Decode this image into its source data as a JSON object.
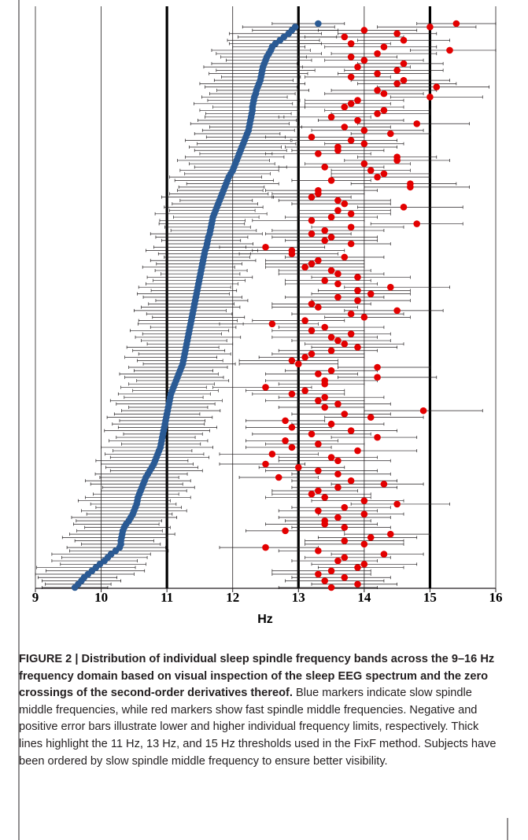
{
  "chart_data": {
    "type": "dot-errorbar",
    "xlabel": "Hz",
    "xlim": [
      9,
      16
    ],
    "xticks": [
      9,
      10,
      11,
      12,
      13,
      14,
      15,
      16
    ],
    "thresholds": [
      11,
      13,
      15
    ],
    "grid": true,
    "series": [
      {
        "color": "#2a5a94",
        "values": [
          13.3,
          12.95,
          12.9,
          12.85,
          12.78,
          12.72,
          12.65,
          12.6,
          12.58,
          12.55,
          12.52,
          12.5,
          12.48,
          12.46,
          12.45,
          12.44,
          12.43,
          12.42,
          12.4,
          12.38,
          12.36,
          12.35,
          12.33,
          12.32,
          12.31,
          12.3,
          12.3,
          12.29,
          12.28,
          12.27,
          12.26,
          12.25,
          12.24,
          12.22,
          12.2,
          12.18,
          12.16,
          12.14,
          12.12,
          12.1,
          12.08,
          12.06,
          12.04,
          12.02,
          12.0,
          11.97,
          11.94,
          11.92,
          11.9,
          11.88,
          11.86,
          11.84,
          11.82,
          11.8,
          11.78,
          11.76,
          11.74,
          11.72,
          11.7,
          11.69,
          11.68,
          11.67,
          11.66,
          11.65,
          11.63,
          11.62,
          11.61,
          11.6,
          11.58,
          11.57,
          11.56,
          11.55,
          11.54,
          11.53,
          11.52,
          11.51,
          11.5,
          11.49,
          11.48,
          11.47,
          11.46,
          11.45,
          11.44,
          11.43,
          11.42,
          11.41,
          11.4,
          11.39,
          11.38,
          11.37,
          11.36,
          11.35,
          11.34,
          11.33,
          11.32,
          11.31,
          11.3,
          11.29,
          11.28,
          11.27,
          11.26,
          11.25,
          11.24,
          11.22,
          11.2,
          11.18,
          11.16,
          11.14,
          11.12,
          11.1,
          11.08,
          11.06,
          11.05,
          11.04,
          11.03,
          11.02,
          11.01,
          11.0,
          10.99,
          10.98,
          10.97,
          10.96,
          10.95,
          10.94,
          10.93,
          10.92,
          10.91,
          10.9,
          10.88,
          10.86,
          10.84,
          10.82,
          10.8,
          10.77,
          10.74,
          10.71,
          10.68,
          10.66,
          10.64,
          10.62,
          10.6,
          10.58,
          10.56,
          10.55,
          10.54,
          10.52,
          10.5,
          10.48,
          10.45,
          10.42,
          10.38,
          10.35,
          10.33,
          10.32,
          10.31,
          10.3,
          10.3,
          10.28,
          10.22,
          10.15,
          10.1,
          10.05,
          9.98,
          9.92,
          9.86,
          9.8,
          9.74,
          9.7,
          9.65,
          9.6
        ],
        "minus": [
          0.7,
          0.8,
          0.6,
          0.9,
          0.7,
          0.8,
          0.7,
          0.6,
          0.9,
          0.8,
          0.7,
          0.6,
          0.8,
          0.9,
          0.7,
          0.8,
          0.6,
          0.7,
          0.9,
          0.8,
          0.6,
          0.7,
          0.8,
          0.7,
          0.9,
          0.6,
          0.8,
          0.7,
          0.7,
          0.8,
          0.9,
          0.6,
          0.7,
          0.8,
          0.6,
          0.9,
          0.7,
          0.8,
          0.7,
          0.6,
          0.8,
          0.9,
          0.7,
          0.6,
          0.8,
          0.7,
          0.9,
          0.8,
          0.6,
          0.7,
          0.7,
          0.8,
          0.9,
          0.6,
          0.7,
          0.8,
          0.7,
          0.9,
          0.6,
          0.8,
          0.8,
          0.7,
          0.6,
          0.9,
          0.8,
          0.7,
          0.6,
          0.8,
          0.9,
          0.7,
          0.6,
          0.8,
          0.7,
          0.9,
          0.7,
          0.6,
          0.8,
          0.7,
          0.8,
          0.9,
          0.7,
          0.9,
          0.8,
          0.6,
          0.7,
          0.8,
          0.9,
          0.7,
          0.6,
          0.8,
          0.8,
          0.6,
          0.9,
          0.7,
          0.8,
          0.7,
          0.6,
          0.9,
          0.8,
          0.7,
          0.9,
          0.7,
          0.6,
          0.8,
          0.7,
          0.9,
          0.8,
          0.6,
          0.7,
          0.8,
          0.6,
          0.8,
          0.7,
          0.9,
          0.8,
          0.6,
          0.7,
          0.8,
          0.9,
          0.7,
          0.8,
          0.7,
          0.9,
          0.6,
          0.7,
          0.8,
          0.6,
          0.9,
          0.7,
          0.8,
          0.7,
          0.9,
          0.8,
          0.7,
          0.6,
          0.8,
          0.7,
          0.9,
          0.8,
          0.6,
          0.6,
          0.7,
          0.8,
          0.9,
          0.7,
          0.6,
          0.8,
          0.7,
          0.9,
          0.8,
          0.8,
          0.6,
          0.7,
          0.8,
          0.9,
          0.7,
          0.6,
          0.8,
          0.7,
          0.9,
          0.7,
          0.8,
          0.6,
          0.9,
          0.7,
          0.8,
          0.7,
          0.6,
          0.5,
          0.5
        ],
        "plus": [
          0.4,
          0.6,
          0.7,
          0.5,
          0.8,
          0.6,
          0.7,
          0.5,
          0.6,
          0.8,
          0.6,
          0.7,
          0.5,
          0.6,
          0.8,
          0.7,
          0.6,
          0.5,
          0.7,
          0.6,
          0.8,
          0.6,
          0.5,
          0.7,
          0.6,
          0.8,
          0.7,
          0.6,
          0.5,
          0.7,
          0.6,
          0.8,
          0.7,
          0.5,
          0.6,
          0.7,
          0.8,
          0.6,
          0.7,
          0.5,
          0.7,
          0.5,
          0.6,
          0.8,
          0.7,
          0.6,
          0.5,
          0.7,
          0.8,
          0.6,
          0.6,
          0.7,
          0.8,
          0.5,
          0.6,
          0.7,
          0.6,
          0.8,
          0.7,
          0.5,
          0.5,
          0.6,
          0.7,
          0.8,
          0.6,
          0.5,
          0.7,
          0.6,
          0.8,
          0.7,
          0.7,
          0.8,
          0.6,
          0.5,
          0.7,
          0.6,
          0.8,
          0.7,
          0.6,
          0.5,
          0.6,
          0.5,
          0.7,
          0.8,
          0.6,
          0.7,
          0.5,
          0.6,
          0.8,
          0.7,
          0.8,
          0.7,
          0.6,
          0.5,
          0.8,
          0.6,
          0.7,
          0.5,
          0.6,
          0.7,
          0.5,
          0.6,
          0.8,
          0.7,
          0.5,
          0.6,
          0.7,
          0.8,
          0.6,
          0.5,
          0.7,
          0.6,
          0.5,
          0.8,
          0.7,
          0.6,
          0.8,
          0.5,
          0.7,
          0.6,
          0.6,
          0.8,
          0.7,
          0.6,
          0.5,
          0.7,
          0.6,
          0.8,
          0.5,
          0.7,
          0.8,
          0.5,
          0.6,
          0.7,
          0.8,
          0.6,
          0.5,
          0.7,
          0.6,
          0.8,
          0.7,
          0.6,
          0.8,
          0.5,
          0.6,
          0.7,
          0.8,
          0.6,
          0.7,
          0.5,
          0.5,
          0.7,
          0.6,
          0.8,
          0.7,
          0.5,
          0.6,
          0.7,
          0.8,
          0.6,
          0.6,
          0.5,
          0.7,
          0.6,
          0.8,
          0.7,
          0.5,
          0.6,
          0.5,
          0.5
        ]
      },
      {
        "color": "#e30000",
        "values": [
          15.4,
          15.0,
          14.0,
          14.5,
          13.7,
          14.6,
          13.8,
          14.3,
          15.3,
          14.2,
          13.8,
          14.0,
          14.6,
          13.9,
          14.5,
          14.2,
          13.8,
          14.6,
          14.5,
          15.1,
          14.2,
          14.3,
          15.0,
          13.9,
          13.8,
          13.7,
          14.3,
          14.2,
          13.5,
          13.9,
          14.8,
          13.7,
          14.0,
          14.4,
          13.2,
          13.8,
          14.0,
          13.6,
          13.6,
          13.3,
          14.5,
          14.5,
          14.0,
          13.4,
          14.1,
          14.3,
          14.2,
          13.5,
          14.7,
          14.7,
          13.3,
          13.3,
          13.2,
          13.6,
          13.7,
          14.6,
          13.6,
          13.8,
          13.5,
          13.2,
          14.8,
          13.8,
          13.4,
          13.2,
          13.5,
          13.4,
          13.8,
          12.5,
          12.9,
          12.9,
          13.7,
          13.3,
          13.2,
          13.1,
          13.5,
          13.6,
          13.9,
          13.4,
          13.6,
          14.4,
          13.9,
          14.1,
          13.6,
          13.9,
          13.2,
          13.3,
          14.5,
          13.8,
          14.0,
          13.1,
          12.6,
          13.4,
          13.2,
          13.8,
          13.5,
          13.6,
          13.7,
          13.9,
          13.5,
          13.2,
          13.1,
          12.9,
          13.0,
          14.2,
          13.5,
          13.3,
          14.2,
          13.4,
          13.4,
          12.5,
          13.1,
          12.9,
          13.4,
          13.3,
          13.6,
          13.4,
          14.9,
          13.7,
          14.1,
          12.8,
          13.5,
          12.9,
          13.8,
          13.2,
          14.2,
          12.8,
          13.3,
          12.9,
          13.9,
          12.6,
          13.5,
          13.6,
          12.5,
          13.0,
          13.3,
          13.6,
          12.7,
          13.8,
          14.3,
          13.6,
          13.3,
          13.2,
          13.4,
          14.0,
          14.5,
          13.7,
          13.3,
          14.0,
          13.6,
          13.4,
          13.4,
          13.7,
          12.8,
          14.4,
          14.1,
          13.7,
          14.0,
          12.5,
          13.3,
          14.3,
          13.7,
          13.6,
          14.0,
          13.9,
          13.5,
          13.3,
          13.7,
          13.4,
          13.9,
          13.5
        ],
        "minus": [
          0.6,
          0.8,
          0.7,
          0.9,
          0.6,
          0.7,
          0.8,
          0.9,
          0.6,
          0.7,
          0.8,
          0.6,
          0.7,
          0.9,
          0.8,
          0.6,
          0.7,
          0.8,
          0.6,
          0.9,
          0.7,
          0.9,
          0.6,
          0.8,
          0.7,
          0.6,
          0.9,
          0.7,
          0.8,
          0.6,
          0.9,
          0.7,
          0.8,
          0.6,
          0.7,
          0.9,
          0.6,
          0.8,
          0.7,
          0.8,
          0.6,
          0.8,
          0.9,
          0.7,
          0.6,
          0.8,
          0.7,
          0.6,
          0.9,
          0.7,
          0.8,
          0.7,
          0.6,
          0.9,
          0.8,
          0.7,
          0.6,
          0.8,
          0.7,
          0.9,
          0.7,
          0.6,
          0.8,
          0.7,
          0.9,
          0.6,
          0.8,
          0.7,
          0.6,
          0.8,
          0.9,
          0.8,
          0.7,
          0.6,
          0.8,
          0.9,
          0.7,
          0.6,
          0.8,
          0.7,
          0.6,
          0.9,
          0.8,
          0.7,
          0.6,
          0.7,
          0.8,
          0.9,
          0.6,
          0.8,
          0.8,
          0.7,
          0.6,
          0.8,
          0.9,
          0.7,
          0.6,
          0.7,
          0.8,
          0.6,
          0.7,
          0.8,
          0.9,
          0.6,
          0.7,
          0.8,
          0.6,
          0.9,
          0.7,
          0.8,
          0.9,
          0.6,
          0.7,
          0.8,
          0.6,
          0.7,
          0.9,
          0.8,
          0.7,
          0.6,
          0.6,
          0.7,
          0.8,
          0.9,
          0.7,
          0.6,
          0.8,
          0.7,
          0.9,
          0.8,
          0.8,
          0.9,
          0.7,
          0.6,
          0.8,
          0.7,
          0.6,
          0.9,
          0.8,
          0.7,
          0.7,
          0.6,
          0.9,
          0.8,
          0.7,
          0.8,
          0.6,
          0.7,
          0.9,
          0.6,
          0.9,
          0.8,
          0.6,
          0.7,
          0.8,
          0.6,
          0.9,
          0.7,
          0.6,
          0.8,
          0.6,
          0.7,
          0.8,
          0.6,
          0.9,
          0.7,
          0.8,
          0.6,
          0.7,
          0.8
        ],
        "plus": [
          0.6,
          0.7,
          0.8,
          0.6,
          0.9,
          0.7,
          0.6,
          0.8,
          0.7,
          0.9,
          0.7,
          0.9,
          0.6,
          0.8,
          0.7,
          0.8,
          0.6,
          0.7,
          0.9,
          0.8,
          0.9,
          0.6,
          0.8,
          0.7,
          0.6,
          0.9,
          0.7,
          0.8,
          0.6,
          0.7,
          0.8,
          0.7,
          0.9,
          0.6,
          0.8,
          0.7,
          0.6,
          0.9,
          0.7,
          0.8,
          0.6,
          0.8,
          0.7,
          0.9,
          0.6,
          0.7,
          0.8,
          0.6,
          0.7,
          0.9,
          0.9,
          0.7,
          0.6,
          0.8,
          0.7,
          0.9,
          0.8,
          0.6,
          0.7,
          0.8,
          0.7,
          0.8,
          0.9,
          0.6,
          0.7,
          0.8,
          0.6,
          0.9,
          0.8,
          0.7,
          0.6,
          0.7,
          0.8,
          0.9,
          0.6,
          0.7,
          0.8,
          0.7,
          0.6,
          0.9,
          0.8,
          0.6,
          0.7,
          0.8,
          0.9,
          0.6,
          0.7,
          0.8,
          0.7,
          0.6,
          0.7,
          0.9,
          0.8,
          0.6,
          0.7,
          0.8,
          0.9,
          0.6,
          0.7,
          0.8,
          0.9,
          0.7,
          0.6,
          0.8,
          0.7,
          0.6,
          0.9,
          0.8,
          0.6,
          0.7,
          0.6,
          0.8,
          0.9,
          0.7,
          0.8,
          0.6,
          0.9,
          0.7,
          0.8,
          0.6,
          0.8,
          0.6,
          0.7,
          0.9,
          0.6,
          0.8,
          0.7,
          0.6,
          0.9,
          0.7,
          0.7,
          0.8,
          0.6,
          0.7,
          0.9,
          0.8,
          0.6,
          0.7,
          0.6,
          0.9,
          0.6,
          0.9,
          0.7,
          0.6,
          0.8,
          0.7,
          0.9,
          0.6,
          0.8,
          0.7,
          0.8,
          0.7,
          0.9,
          0.6,
          0.7,
          0.9,
          0.6,
          0.8,
          0.7,
          0.6,
          0.7,
          0.6,
          0.8,
          0.7,
          0.6,
          0.8,
          0.7,
          0.9,
          0.6,
          0.7
        ]
      }
    ],
    "caption_bold": "FIGURE 2 | Distribution of individual sleep spindle frequency bands across the 9–16 Hz frequency domain based on visual inspection of the sleep EEG spectrum and the zero crossings of the second-order derivatives thereof.",
    "caption_text": "Blue markers indicate slow spindle middle frequencies, while red markers show fast spindle middle frequencies. Negative and positive error bars illustrate lower and higher individual frequency limits, respectively. Thick lines highlight the 11 Hz, 13 Hz, and 15 Hz thresholds used in the FixF method. Subjects have been ordered by slow spindle middle frequency to ensure better visibility."
  }
}
